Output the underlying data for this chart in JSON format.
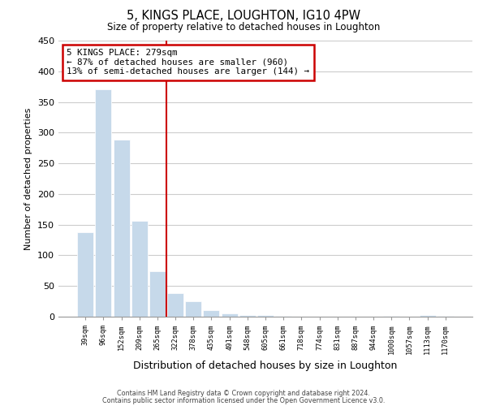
{
  "title": "5, KINGS PLACE, LOUGHTON, IG10 4PW",
  "subtitle": "Size of property relative to detached houses in Loughton",
  "xlabel": "Distribution of detached houses by size in Loughton",
  "ylabel": "Number of detached properties",
  "bar_color": "#c6d9ea",
  "bar_edge_color": "#ffffff",
  "categories": [
    "39sqm",
    "96sqm",
    "152sqm",
    "209sqm",
    "265sqm",
    "322sqm",
    "378sqm",
    "435sqm",
    "491sqm",
    "548sqm",
    "605sqm",
    "661sqm",
    "718sqm",
    "774sqm",
    "831sqm",
    "887sqm",
    "944sqm",
    "1000sqm",
    "1057sqm",
    "1113sqm",
    "1170sqm"
  ],
  "values": [
    138,
    370,
    288,
    156,
    74,
    38,
    25,
    11,
    5,
    2,
    2,
    1,
    0,
    0,
    0,
    0,
    0,
    1,
    0,
    2,
    1
  ],
  "ylim": [
    0,
    450
  ],
  "yticks": [
    0,
    50,
    100,
    150,
    200,
    250,
    300,
    350,
    400,
    450
  ],
  "property_line_x": 4.5,
  "annotation_line1": "5 KINGS PLACE: 279sqm",
  "annotation_line2": "← 87% of detached houses are smaller (960)",
  "annotation_line3": "13% of semi-detached houses are larger (144) →",
  "annotation_box_color": "#ffffff",
  "annotation_box_edge": "#cc0000",
  "line_color": "#cc0000",
  "footnote1": "Contains HM Land Registry data © Crown copyright and database right 2024.",
  "footnote2": "Contains public sector information licensed under the Open Government Licence v3.0.",
  "grid_color": "#cccccc",
  "background_color": "#ffffff"
}
